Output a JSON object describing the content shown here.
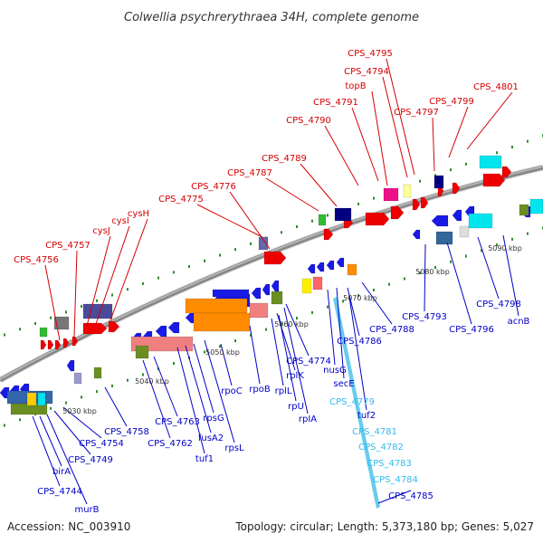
{
  "title": "Colwellia psychrerythraea 34H, complete genome",
  "footer": {
    "accession": "Accession: NC_003910",
    "topology": "Topology: circular; Length: 5,373,180 bp; Genes: 5,027"
  },
  "scale_labels": [
    "5030 kbp",
    "5040 kbp",
    "5050 kbp",
    "5060 kbp",
    "5070 kbp",
    "5080 kbp",
    "5090 kbp"
  ],
  "top_labels": [
    "CPS_4756",
    "CPS_4757",
    "cysJ",
    "cysI",
    "cysH",
    "CPS_4775",
    "CPS_4776",
    "CPS_4787",
    "CPS_4789",
    "CPS_4790",
    "CPS_4791",
    "topB",
    "CPS_4794",
    "CPS_4795",
    "CPS_4797",
    "CPS_4799",
    "CPS_4801"
  ],
  "bottom_labels": [
    "birA",
    "CPS_4744",
    "murB",
    "CPS_4749",
    "CPS_4754",
    "CPS_4758",
    "CPS_4762",
    "CPS_4763",
    "tuf1",
    "fusA2",
    "rpsG",
    "rpsL",
    "rpoC",
    "rpoB",
    "rplL",
    "rplK",
    "rpIA",
    "rpU",
    "CPS_4774",
    "nusG",
    "secE",
    "tuf2",
    "CPS_4786",
    "CPS_4788",
    "CPS_4793",
    "CPS_4796",
    "CPS_4798",
    "acnB"
  ],
  "cyan_labels": [
    "CPS_4779",
    "CPS_4781",
    "CPS_4782",
    "CPS_4783",
    "CPS_4784"
  ],
  "bottom_end_label": "CPS_4785",
  "colors": {
    "label_red": "#d40000",
    "label_blue": "#0000c8",
    "label_cyan": "#33bbee",
    "backbone": "#888888",
    "fwd_gene": "#ee0000",
    "rev_gene": "#1a1ae6",
    "orange_gene": "#ff8c00",
    "pink_gene": "#f08080",
    "olive_gene": "#6b8e23",
    "cyan_gene": "#00e5ee",
    "navy_gene": "#000080",
    "green_tick": "#2e8b2e"
  }
}
